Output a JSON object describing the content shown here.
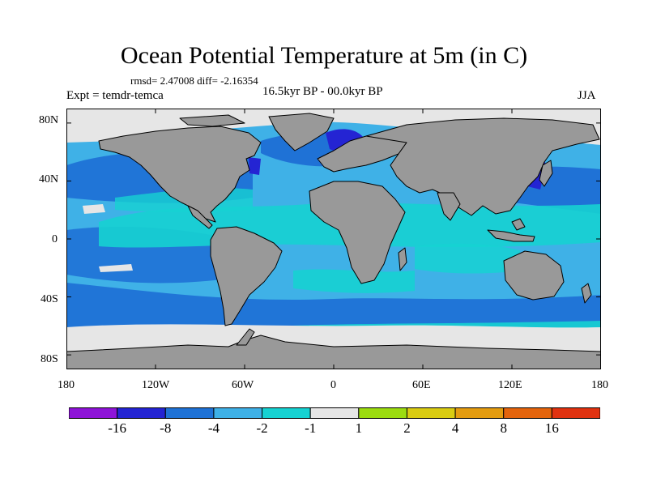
{
  "title": "Ocean Potential Temperature at 5m (in C)",
  "stats": "rmsd= 2.47008 diff= -2.16354",
  "experiment": "Expt = temdr-temca",
  "period": "16.5kyr BP - 00.0kyr BP",
  "season": "JJA",
  "colors": {
    "land": "#999999",
    "ocean_default": "#3fb1e7",
    "coast": "#000000"
  },
  "map": {
    "lon_range": [
      -180,
      180
    ],
    "lat_range": [
      -90,
      90
    ],
    "lon_ticks": [
      {
        "value": -180,
        "label": "180"
      },
      {
        "value": -120,
        "label": "120W"
      },
      {
        "value": -60,
        "label": "60W"
      },
      {
        "value": 0,
        "label": "0"
      },
      {
        "value": 60,
        "label": "60E"
      },
      {
        "value": 120,
        "label": "120E"
      },
      {
        "value": 180,
        "label": "180"
      }
    ],
    "lat_ticks": [
      {
        "value": 80,
        "label": "80N"
      },
      {
        "value": 40,
        "label": "40N"
      },
      {
        "value": 0,
        "label": "0"
      },
      {
        "value": -40,
        "label": "40S"
      },
      {
        "value": -80,
        "label": "80S"
      }
    ]
  },
  "colorbar": {
    "colors": [
      "#8e14d8",
      "#2424d3",
      "#1f72d6",
      "#3fb1e7",
      "#16d2d2",
      "#e6e6e6",
      "#9cdc10",
      "#d9cc12",
      "#e49c10",
      "#e4640c",
      "#e03210"
    ],
    "labels": [
      "-16",
      "-8",
      "-4",
      "-2",
      "-1",
      "1",
      "2",
      "4",
      "8",
      "16"
    ]
  }
}
